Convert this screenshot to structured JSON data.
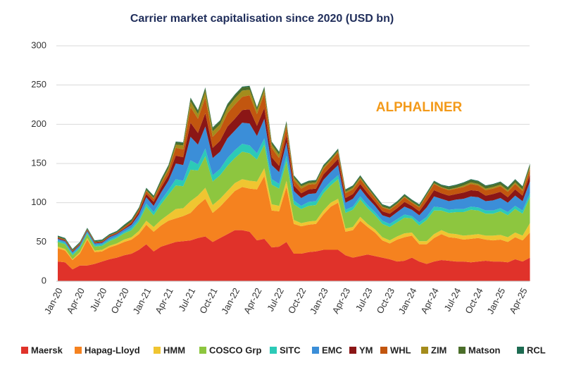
{
  "chart_data": {
    "type": "stacked_area",
    "title": "Carrier market capitalisation since 2020 (USD bn)",
    "watermark": "ALPHALINER",
    "categories": [
      "Jan-20",
      null,
      null,
      "Apr-20",
      null,
      null,
      "Jul-20",
      null,
      null,
      "Oct-20",
      null,
      null,
      "Jan-21",
      null,
      null,
      "Apr-21",
      null,
      null,
      "Jul-21",
      null,
      null,
      "Oct-21",
      null,
      null,
      "Jan-22",
      null,
      null,
      "Apr-22",
      null,
      null,
      "Jul-22",
      null,
      null,
      "Oct-22",
      null,
      null,
      "Jan-23",
      null,
      null,
      "Apr-23",
      null,
      null,
      "Jul-23",
      null,
      null,
      "Oct-23",
      null,
      null,
      "Jan-24",
      null,
      null,
      "Apr-24",
      null,
      null,
      "Jul-24",
      null,
      null,
      "Oct-24",
      null,
      null,
      "Jan-25",
      null,
      null,
      "Apr-25",
      null
    ],
    "ylim": [
      0,
      300
    ],
    "yticks": [
      0,
      50,
      100,
      150,
      200,
      250,
      300
    ],
    "grid": true,
    "legend": "bottom",
    "series": [
      {
        "name": "Maersk",
        "color": "#e0322a",
        "values": [
          25,
          24,
          15,
          20,
          20,
          22,
          25,
          28,
          30,
          33,
          35,
          40,
          47,
          38,
          44,
          47,
          50,
          51,
          52,
          55,
          57,
          50,
          55,
          60,
          65,
          65,
          63,
          52,
          54,
          43,
          44,
          50,
          35,
          35,
          37,
          38,
          40,
          40,
          40,
          33,
          30,
          32,
          34,
          32,
          30,
          28,
          25,
          26,
          30,
          25,
          22,
          25,
          27,
          26,
          25,
          25,
          24,
          25,
          26,
          25,
          25,
          24,
          28,
          25,
          30
        ]
      },
      {
        "name": "Hapag-Lloyd",
        "color": "#f5821f",
        "values": [
          17,
          15,
          12,
          15,
          33,
          15,
          13,
          15,
          16,
          17,
          18,
          20,
          25,
          25,
          27,
          30,
          30,
          32,
          35,
          42,
          48,
          37,
          40,
          45,
          50,
          55,
          55,
          65,
          80,
          47,
          45,
          70,
          38,
          35,
          35,
          35,
          45,
          55,
          60,
          30,
          35,
          45,
          35,
          30,
          22,
          20,
          28,
          30,
          28,
          22,
          25,
          30,
          33,
          30,
          30,
          28,
          30,
          30,
          27,
          27,
          28,
          26,
          28,
          27,
          32
        ]
      },
      {
        "name": "HMM",
        "color": "#f0c531",
        "values": [
          2,
          2,
          1,
          2,
          2,
          2,
          2,
          2,
          2,
          3,
          3,
          4,
          5,
          6,
          7,
          8,
          12,
          10,
          15,
          12,
          14,
          10,
          10,
          10,
          10,
          10,
          10,
          10,
          10,
          8,
          7,
          8,
          5,
          4,
          4,
          4,
          5,
          5,
          5,
          4,
          4,
          5,
          4,
          4,
          4,
          4,
          4,
          5,
          4,
          4,
          4,
          5,
          5,
          5,
          5,
          5,
          5,
          5,
          5,
          6,
          6,
          6,
          6,
          6,
          12
        ]
      },
      {
        "name": "COSCO Grp",
        "color": "#8dc63f",
        "values": [
          6,
          6,
          5,
          5,
          5,
          5,
          5,
          6,
          7,
          8,
          9,
          12,
          18,
          15,
          20,
          25,
          30,
          28,
          40,
          32,
          40,
          30,
          30,
          32,
          32,
          35,
          35,
          28,
          30,
          25,
          22,
          25,
          20,
          18,
          20,
          20,
          22,
          22,
          25,
          20,
          22,
          22,
          20,
          18,
          17,
          17,
          18,
          20,
          18,
          20,
          27,
          30,
          25,
          26,
          28,
          30,
          32,
          30,
          28,
          28,
          30,
          28,
          30,
          28,
          33
        ]
      },
      {
        "name": "SITC",
        "color": "#2ccab7",
        "values": [
          2,
          2,
          2,
          2,
          2,
          2,
          2,
          2,
          2,
          2,
          3,
          3,
          4,
          4,
          5,
          6,
          8,
          7,
          12,
          8,
          10,
          8,
          8,
          10,
          10,
          10,
          10,
          8,
          8,
          7,
          6,
          7,
          5,
          4,
          5,
          5,
          5,
          5,
          5,
          4,
          4,
          4,
          4,
          4,
          4,
          4,
          4,
          4,
          3,
          4,
          4,
          5,
          4,
          4,
          4,
          4,
          4,
          4,
          4,
          4,
          4,
          4,
          4,
          4,
          5
        ]
      },
      {
        "name": "EMC",
        "color": "#3b8ed8",
        "values": [
          2,
          2,
          2,
          2,
          2,
          2,
          2,
          3,
          3,
          3,
          4,
          6,
          8,
          8,
          10,
          12,
          20,
          20,
          30,
          25,
          28,
          22,
          22,
          25,
          25,
          27,
          28,
          22,
          25,
          18,
          15,
          17,
          12,
          10,
          10,
          10,
          12,
          12,
          13,
          9,
          10,
          10,
          9,
          8,
          7,
          8,
          9,
          10,
          8,
          9,
          12,
          13,
          11,
          11,
          12,
          13,
          13,
          13,
          12,
          13,
          13,
          12,
          13,
          12,
          15
        ]
      },
      {
        "name": "YM",
        "color": "#8b1616",
        "values": [
          1,
          1,
          1,
          1,
          1,
          1,
          1,
          1,
          1,
          1,
          2,
          3,
          4,
          5,
          6,
          7,
          10,
          10,
          18,
          15,
          17,
          13,
          14,
          15,
          15,
          16,
          18,
          13,
          14,
          10,
          8,
          9,
          7,
          6,
          6,
          6,
          7,
          7,
          8,
          6,
          6,
          6,
          6,
          5,
          5,
          5,
          5,
          6,
          5,
          5,
          8,
          8,
          7,
          7,
          7,
          8,
          8,
          8,
          7,
          8,
          8,
          7,
          8,
          7,
          9
        ]
      },
      {
        "name": "WHL",
        "color": "#c2560f",
        "values": [
          1,
          1,
          1,
          1,
          1,
          1,
          1,
          1,
          1,
          2,
          2,
          3,
          4,
          4,
          5,
          6,
          10,
          10,
          20,
          18,
          20,
          14,
          15,
          17,
          18,
          17,
          18,
          15,
          18,
          12,
          10,
          11,
          7,
          6,
          6,
          6,
          7,
          7,
          8,
          6,
          6,
          6,
          6,
          5,
          5,
          5,
          5,
          6,
          4,
          5,
          7,
          8,
          7,
          7,
          7,
          7,
          8,
          7,
          7,
          7,
          7,
          7,
          7,
          6,
          7
        ]
      },
      {
        "name": "ZIM",
        "color": "#a48c1c",
        "values": [
          0,
          0,
          0,
          0,
          0,
          0,
          0,
          0,
          0,
          0,
          0,
          0,
          1,
          1,
          2,
          3,
          4,
          5,
          7,
          6,
          8,
          7,
          6,
          7,
          8,
          8,
          7,
          5,
          5,
          4,
          4,
          3,
          3,
          3,
          2,
          2,
          2,
          2,
          2,
          2,
          2,
          2,
          1,
          1,
          1,
          1,
          1,
          1,
          1,
          1,
          1,
          1,
          1,
          1,
          1,
          2,
          2,
          2,
          2,
          2,
          2,
          2,
          2,
          2,
          3
        ]
      },
      {
        "name": "Matson",
        "color": "#4b6e2a",
        "values": [
          1,
          1,
          1,
          1,
          1,
          1,
          1,
          1,
          1,
          2,
          2,
          2,
          2,
          2,
          3,
          3,
          3,
          3,
          4,
          4,
          4,
          4,
          4,
          4,
          4,
          4,
          4,
          3,
          3,
          3,
          3,
          3,
          2,
          2,
          2,
          2,
          2,
          2,
          2,
          2,
          2,
          2,
          2,
          2,
          2,
          2,
          2,
          2,
          2,
          2,
          2,
          2,
          2,
          3,
          3,
          3,
          3,
          3,
          3,
          3,
          3,
          3,
          3,
          3,
          3
        ]
      },
      {
        "name": "RCL",
        "color": "#1d6b52",
        "values": [
          1,
          1,
          1,
          1,
          1,
          1,
          1,
          1,
          1,
          1,
          1,
          1,
          1,
          1,
          1,
          1,
          1,
          1,
          1,
          1,
          1,
          1,
          1,
          1,
          1,
          1,
          1,
          1,
          1,
          1,
          1,
          1,
          1,
          1,
          1,
          1,
          1,
          1,
          1,
          1,
          1,
          1,
          1,
          1,
          1,
          1,
          1,
          1,
          1,
          1,
          1,
          1,
          1,
          1,
          1,
          1,
          1,
          1,
          1,
          1,
          1,
          1,
          1,
          1,
          1
        ]
      }
    ]
  }
}
